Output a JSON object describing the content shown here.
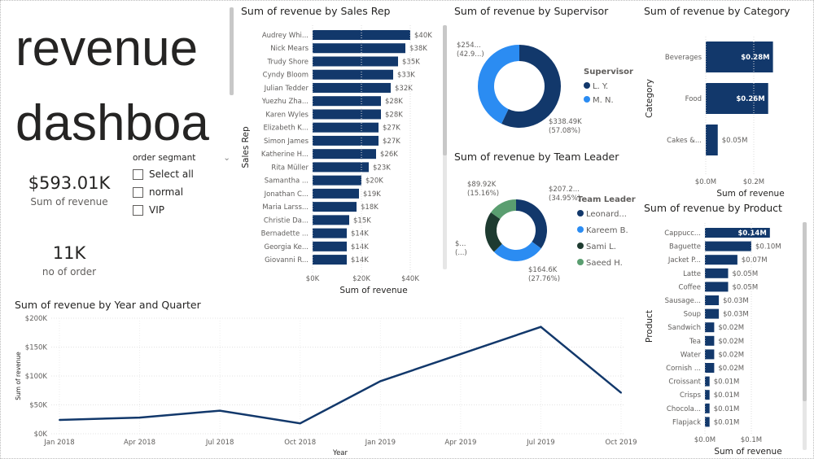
{
  "title_card": {
    "text_line1": "revenue",
    "text_line2": "dashboa"
  },
  "kpis": [
    {
      "value": "$593.01K",
      "label": "Sum of revenue"
    },
    {
      "value": "11K",
      "label": "no of order"
    }
  ],
  "slicer": {
    "title": "order segmant",
    "options": [
      {
        "label": "Select all",
        "checked": false
      },
      {
        "label": "normal",
        "checked": false
      },
      {
        "label": "VIP",
        "checked": false
      }
    ]
  },
  "colors": {
    "navy": "#12386b",
    "blue": "#2b8cf2",
    "dark_green": "#1e3b30",
    "green": "#5a9e70"
  },
  "chart_data": [
    {
      "id": "sales_rep",
      "type": "bar",
      "orientation": "horizontal",
      "title": "Sum of revenue by Sales Rep",
      "xlabel": "Sum of revenue",
      "ylabel": "Sales Rep",
      "categories": [
        "Audrey Whi...",
        "Nick Mears",
        "Trudy Shore",
        "Cyndy Bloom",
        "Julian Tedder",
        "Yuezhu Zha...",
        "Karen Wyles",
        "Elizabeth K...",
        "Simon James",
        "Katherine H...",
        "Rita Müller",
        "Samantha ...",
        "Jonathan C...",
        "Maria Larss...",
        "Christie Da...",
        "Bernadette ...",
        "Georgia Ke...",
        "Giovanni R..."
      ],
      "values": [
        40,
        38,
        35,
        33,
        32,
        28,
        28,
        27,
        27,
        26,
        23,
        20,
        19,
        18,
        15,
        14,
        14,
        14
      ],
      "data_labels": [
        "$40K",
        "$38K",
        "$35K",
        "$33K",
        "$32K",
        "$28K",
        "$28K",
        "$27K",
        "$27K",
        "$26K",
        "$23K",
        "$20K",
        "$19K",
        "$18K",
        "$15K",
        "$14K",
        "$14K",
        "$14K"
      ],
      "unit": "K",
      "xticks": [
        "$0K",
        "$20K",
        "$40K"
      ],
      "xtick_values": [
        0,
        20,
        40
      ]
    },
    {
      "id": "supervisor",
      "type": "pie",
      "donut": true,
      "title": "Sum of revenue by Supervisor",
      "legend_title": "Supervisor",
      "legend": "right",
      "slices": [
        {
          "name": "L. Y.",
          "value": 338.49,
          "percent": 57.08,
          "label": "$338.49K",
          "pct_label": "(57.08%)"
        },
        {
          "name": "M. N.",
          "value": 254.52,
          "percent": 42.92,
          "label": "$254...",
          "pct_label": "(42.9...)"
        }
      ]
    },
    {
      "id": "team_leader",
      "type": "pie",
      "donut": true,
      "title": "Sum of revenue by Team Leader",
      "legend_title": "Team Leader",
      "legend": "right",
      "slices": [
        {
          "name": "Leonard...",
          "percent": 34.95,
          "label": "$207.2...",
          "pct_label": "(34.95%)"
        },
        {
          "name": "Kareem B.",
          "percent": 27.76,
          "label": "$164.6K",
          "pct_label": "(27.76%)"
        },
        {
          "name": "Sami L.",
          "percent": 22.13,
          "label": "$...",
          "pct_label": "(...)"
        },
        {
          "name": "Saeed H.",
          "percent": 15.16,
          "label": "$89.92K",
          "pct_label": "(15.16%)"
        }
      ]
    },
    {
      "id": "category",
      "type": "bar",
      "orientation": "horizontal",
      "title": "Sum of revenue by Category",
      "xlabel": "Sum of revenue",
      "ylabel": "Category",
      "categories": [
        "Beverages",
        "Food",
        "Cakes &..."
      ],
      "values": [
        0.28,
        0.26,
        0.05
      ],
      "data_labels": [
        "$0.28M",
        "$0.26M",
        "$0.05M"
      ],
      "xticks": [
        "$0.0M",
        "$0.2M"
      ],
      "xtick_values": [
        0,
        0.2
      ]
    },
    {
      "id": "product",
      "type": "bar",
      "orientation": "horizontal",
      "title": "Sum of revenue by Product",
      "xlabel": "Sum of revenue",
      "ylabel": "Product",
      "categories": [
        "Cappucc...",
        "Baguette",
        "Jacket P...",
        "Latte",
        "Coffee",
        "Sausage...",
        "Soup",
        "Sandwich",
        "Tea",
        "Water",
        "Cornish ...",
        "Croissant",
        "Crisps",
        "Chocola...",
        "Flapjack"
      ],
      "values": [
        0.14,
        0.1,
        0.07,
        0.05,
        0.05,
        0.03,
        0.03,
        0.02,
        0.02,
        0.02,
        0.02,
        0.01,
        0.01,
        0.01,
        0.01
      ],
      "data_labels": [
        "$0.14M",
        "$0.10M",
        "$0.07M",
        "$0.05M",
        "$0.05M",
        "$0.03M",
        "$0.03M",
        "$0.02M",
        "$0.02M",
        "$0.02M",
        "$0.02M",
        "$0.01M",
        "$0.01M",
        "$0.01M",
        "$0.01M"
      ],
      "xticks": [
        "$0.0M",
        "$0.1M"
      ],
      "xtick_values": [
        0,
        0.1
      ]
    },
    {
      "id": "year_quarter",
      "type": "line",
      "title": "Sum of revenue by Year and Quarter",
      "xlabel": "Year",
      "ylabel": "Sum of revenue",
      "x": [
        "Jan 2018",
        "Apr 2018",
        "Jul 2018",
        "Oct 2018",
        "Jan 2019",
        "Apr 2019",
        "Jul 2019",
        "Oct 2019"
      ],
      "y": [
        24000,
        28000,
        40000,
        18000,
        91000,
        138000,
        185000,
        71000
      ],
      "ylim": [
        0,
        200000
      ],
      "yticks": [
        "$0K",
        "$50K",
        "$100K",
        "$150K",
        "$200K"
      ],
      "ytick_values": [
        0,
        50000,
        100000,
        150000,
        200000
      ],
      "grid": true
    }
  ]
}
